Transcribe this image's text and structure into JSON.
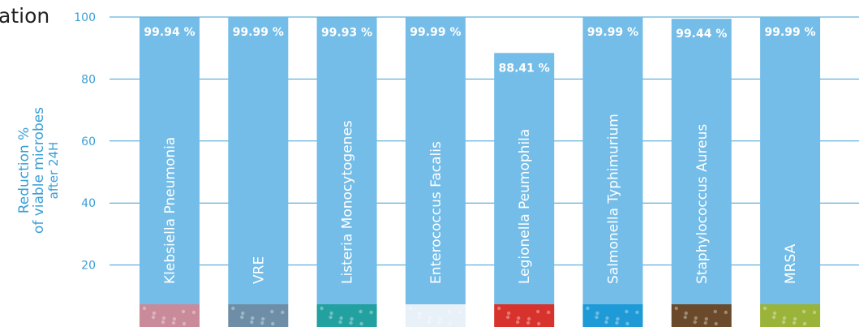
{
  "page": {
    "title_fragment": "ation"
  },
  "chart_data": {
    "type": "bar",
    "ylabel_lines": [
      "Reduction %",
      "of viable microbes"
    ],
    "ylabel_sub": "after 24H",
    "yticks": [
      20,
      40,
      60,
      80,
      100
    ],
    "ylim": [
      0,
      100
    ],
    "grid": true,
    "categories": [
      "Klebsiella Pneumonia",
      "VRE",
      "Listeria Monocytogenes",
      "Enterococcus Facalis",
      "Legionella Peumophila",
      "Salmonella Typhimurium",
      "Staphylococcus Aureus",
      "MRSA"
    ],
    "values": [
      99.94,
      99.99,
      99.93,
      99.99,
      88.41,
      99.99,
      99.44,
      99.99
    ],
    "data_labels": [
      "99.94 %",
      "99.99 %",
      "99.93 %",
      "99.99 %",
      "88.41 %",
      "99.99 %",
      "99.44 %",
      "99.99 %"
    ],
    "colors": {
      "bar": "#74bde8",
      "grid": "#3a9fd6",
      "tick": "#3a9fd6",
      "label": "#ffffff",
      "thumbs": [
        "#c98a9a",
        "#6d8ea6",
        "#23a1a0",
        "#e8f0f8",
        "#d8322c",
        "#1e9ad6",
        "#6a4a2a",
        "#9ab43a"
      ]
    }
  }
}
